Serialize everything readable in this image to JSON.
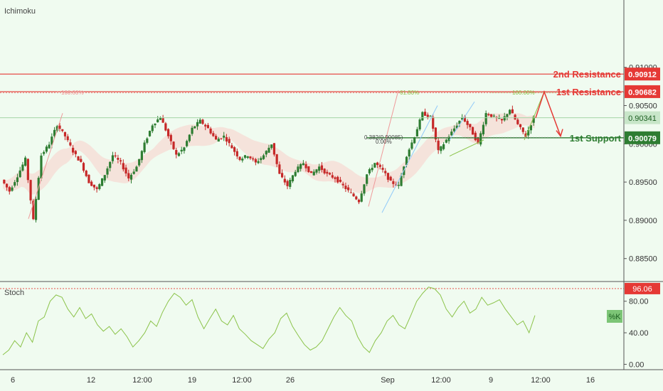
{
  "header": {
    "indicator_label": "Ichimoku"
  },
  "stoch_panel": {
    "label": "Stoch",
    "k_label": "%K"
  },
  "colors": {
    "background": "#f0fbf0",
    "resistance": "#e53935",
    "support": "#2e7d32",
    "candle_up": "#2e7d32",
    "candle_down": "#c62828",
    "cloud": "#f6d9d2",
    "stoch_line": "#8bc34a",
    "fib_green": "#8bc34a",
    "fib_red": "#ef9a9a",
    "fib_blue": "#90caf9"
  },
  "annotations": {
    "second_resistance": {
      "label": "2nd Resistance",
      "value": "0.90912"
    },
    "first_resistance": {
      "label": "1st Resistance",
      "value": "0.90682"
    },
    "first_support": {
      "label": "1st Support",
      "value": "0.90079"
    },
    "current_price": "0.90341",
    "stoch_level": "96.06",
    "fib_labels": [
      "100.00%",
      "61.80%",
      "100.00%",
      "0.382(0.90085)",
      "0.00%"
    ]
  },
  "chart_data": [
    {
      "type": "line",
      "title": "",
      "price_axis": {
        "ticks": [
          "0.91000",
          "0.90500",
          "0.90000",
          "0.89500",
          "0.89000",
          "0.88500"
        ],
        "ylim": [
          0.882,
          0.9188
        ]
      },
      "x_axis": {
        "ticks": [
          "6",
          "12",
          "12:00",
          "19",
          "12:00",
          "26",
          "Sep",
          "12:00",
          "9",
          "12:00",
          "16"
        ]
      },
      "levels": [
        {
          "name": "2nd Resistance",
          "value": 0.90912
        },
        {
          "name": "1st Resistance",
          "value": 0.90682
        },
        {
          "name": "current",
          "value": 0.90341
        },
        {
          "name": "1st Support",
          "value": 0.90079
        }
      ],
      "price_path": [
        [
          0,
          0.8953
        ],
        [
          3,
          0.8938
        ],
        [
          6,
          0.8958
        ],
        [
          9,
          0.898
        ],
        [
          12,
          0.89
        ],
        [
          15,
          0.8985
        ],
        [
          18,
          0.9
        ],
        [
          21,
          0.9025
        ],
        [
          24,
          0.901
        ],
        [
          27,
          0.899
        ],
        [
          30,
          0.8975
        ],
        [
          33,
          0.895
        ],
        [
          36,
          0.894
        ],
        [
          39,
          0.896
        ],
        [
          42,
          0.8985
        ],
        [
          45,
          0.8975
        ],
        [
          48,
          0.8955
        ],
        [
          51,
          0.897
        ],
        [
          54,
          0.9
        ],
        [
          57,
          0.9025
        ],
        [
          60,
          0.9035
        ],
        [
          63,
          0.901
        ],
        [
          66,
          0.8985
        ],
        [
          69,
          0.8995
        ],
        [
          72,
          0.902
        ],
        [
          75,
          0.903
        ],
        [
          78,
          0.902
        ],
        [
          81,
          0.9005
        ],
        [
          84,
          0.901
        ],
        [
          87,
          0.8995
        ],
        [
          90,
          0.898
        ],
        [
          93,
          0.8985
        ],
        [
          96,
          0.8975
        ],
        [
          99,
          0.8985
        ],
        [
          102,
          0.9
        ],
        [
          105,
          0.896
        ],
        [
          108,
          0.8945
        ],
        [
          111,
          0.8965
        ],
        [
          114,
          0.8975
        ],
        [
          117,
          0.896
        ],
        [
          120,
          0.897
        ],
        [
          123,
          0.896
        ],
        [
          126,
          0.8955
        ],
        [
          129,
          0.8945
        ],
        [
          132,
          0.8935
        ],
        [
          135,
          0.8925
        ],
        [
          138,
          0.896
        ],
        [
          141,
          0.8975
        ],
        [
          144,
          0.8965
        ],
        [
          147,
          0.895
        ],
        [
          150,
          0.8945
        ],
        [
          153,
          0.8985
        ],
        [
          156,
          0.901
        ],
        [
          159,
          0.904
        ],
        [
          162,
          0.9035
        ],
        [
          165,
          0.899
        ],
        [
          168,
          0.9005
        ],
        [
          171,
          0.902
        ],
        [
          174,
          0.9035
        ],
        [
          177,
          0.902
        ],
        [
          180,
          0.9
        ],
        [
          183,
          0.904
        ],
        [
          186,
          0.9035
        ],
        [
          189,
          0.903
        ],
        [
          192,
          0.9045
        ],
        [
          195,
          0.9025
        ],
        [
          198,
          0.901
        ],
        [
          201,
          0.9034
        ]
      ],
      "price_path_x_range": [
        0,
        201
      ]
    },
    {
      "type": "line",
      "title": "Stoch",
      "series": [
        {
          "name": "%K",
          "values": [
            12,
            18,
            30,
            22,
            40,
            28,
            55,
            60,
            80,
            88,
            85,
            70,
            60,
            72,
            58,
            64,
            50,
            42,
            48,
            38,
            45,
            35,
            22,
            30,
            40,
            55,
            48,
            66,
            80,
            90,
            85,
            75,
            82,
            60,
            45,
            58,
            70,
            55,
            50,
            62,
            45,
            38,
            30,
            25,
            20,
            32,
            40,
            58,
            65,
            48,
            36,
            25,
            18,
            22,
            30,
            45,
            60,
            72,
            62,
            55,
            35,
            22,
            15,
            30,
            40,
            55,
            62,
            50,
            45,
            62,
            80,
            90,
            98,
            96,
            88,
            70,
            60,
            72,
            80,
            65,
            70,
            85,
            75,
            78,
            82,
            70,
            60,
            50,
            55,
            40,
            62
          ]
        }
      ],
      "y_axis": {
        "ticks": [
          "80.00",
          "40.00",
          "0.00"
        ],
        "ylim": [
          -5,
          105
        ]
      },
      "levels": [
        {
          "name": "overbought",
          "value": 96.06
        }
      ]
    }
  ]
}
